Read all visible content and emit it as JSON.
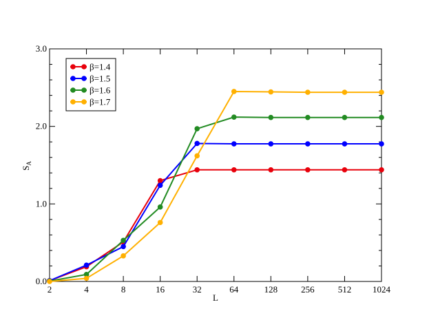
{
  "chart_data": {
    "type": "line",
    "xlabel": "L",
    "ylabel": "S",
    "ylabel_subscript": "A",
    "x_scale": "log2",
    "x": [
      2,
      4,
      8,
      16,
      32,
      64,
      128,
      256,
      512,
      1024
    ],
    "x_tick_labels": [
      "2",
      "4",
      "8",
      "16",
      "32",
      "64",
      "128",
      "256",
      "512",
      "1024"
    ],
    "ylim": [
      0.0,
      3.0
    ],
    "y_ticks": [
      0.0,
      1.0,
      2.0,
      3.0
    ],
    "y_tick_labels": [
      "0.0",
      "1.0",
      "2.0",
      "3.0"
    ],
    "legend_position": "top-left",
    "grid": false,
    "series": [
      {
        "name": "β=1.4",
        "color": "#e8000b",
        "values": [
          0.01,
          0.19,
          0.51,
          1.3,
          1.44,
          1.44,
          1.44,
          1.44,
          1.44,
          1.44
        ]
      },
      {
        "name": "β=1.5",
        "color": "#0000ff",
        "values": [
          0.01,
          0.21,
          0.45,
          1.24,
          1.78,
          1.775,
          1.775,
          1.775,
          1.775,
          1.775
        ]
      },
      {
        "name": "β=1.6",
        "color": "#228b22",
        "values": [
          0.005,
          0.09,
          0.53,
          0.96,
          1.97,
          2.12,
          2.115,
          2.115,
          2.115,
          2.115
        ]
      },
      {
        "name": "β=1.7",
        "color": "#ffb000",
        "values": [
          0.0,
          0.04,
          0.33,
          0.76,
          1.62,
          2.45,
          2.445,
          2.44,
          2.44,
          2.44
        ]
      }
    ]
  }
}
